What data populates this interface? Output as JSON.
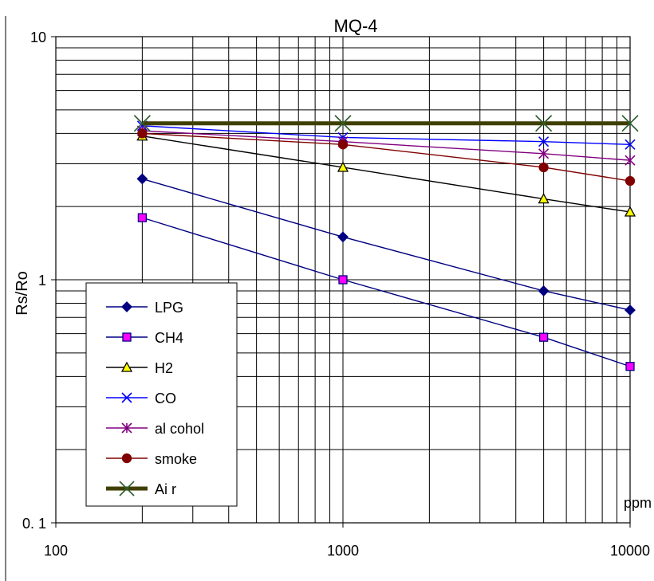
{
  "chart_data": {
    "type": "line",
    "title": "MQ-4",
    "xlabel": "ppm",
    "ylabel": "Rs/Ro",
    "x_scale": "log",
    "y_scale": "log",
    "xlim": [
      100,
      10000
    ],
    "ylim": [
      0.1,
      10
    ],
    "x_tick_labels": [
      "100",
      "1000",
      "10000"
    ],
    "y_tick_labels": [
      "0. 1",
      "1",
      "10"
    ],
    "grid": true,
    "legend_position": "bottom-left",
    "x": [
      200,
      1000,
      5000,
      10000
    ],
    "series": [
      {
        "name": "LPG",
        "marker": "diamond",
        "color": "#000080",
        "marker_fill": "#000080",
        "values": [
          2.6,
          1.5,
          0.9,
          0.75
        ]
      },
      {
        "name": "CH4",
        "marker": "square",
        "color": "#000080",
        "marker_fill": "#ff00ff",
        "values": [
          1.8,
          1.0,
          0.58,
          0.44
        ]
      },
      {
        "name": "H2",
        "marker": "triangle",
        "color": "#000000",
        "marker_fill": "#ffff00",
        "values": [
          3.9,
          2.9,
          2.15,
          1.9
        ]
      },
      {
        "name": "CO",
        "marker": "x",
        "color": "#0000ff",
        "marker_fill": "none",
        "values": [
          4.3,
          3.85,
          3.7,
          3.6
        ]
      },
      {
        "name": "al cohol",
        "marker": "asterisk",
        "color": "#800080",
        "marker_fill": "none",
        "values": [
          4.1,
          3.7,
          3.3,
          3.1
        ]
      },
      {
        "name": "smoke",
        "marker": "circle",
        "color": "#800000",
        "marker_fill": "#800000",
        "values": [
          4.0,
          3.6,
          2.9,
          2.55
        ]
      },
      {
        "name": "Ai r",
        "marker": "x",
        "color": "#3f3f00",
        "marker_fill": "none",
        "values": [
          4.4,
          4.4,
          4.4,
          4.4
        ]
      }
    ]
  }
}
